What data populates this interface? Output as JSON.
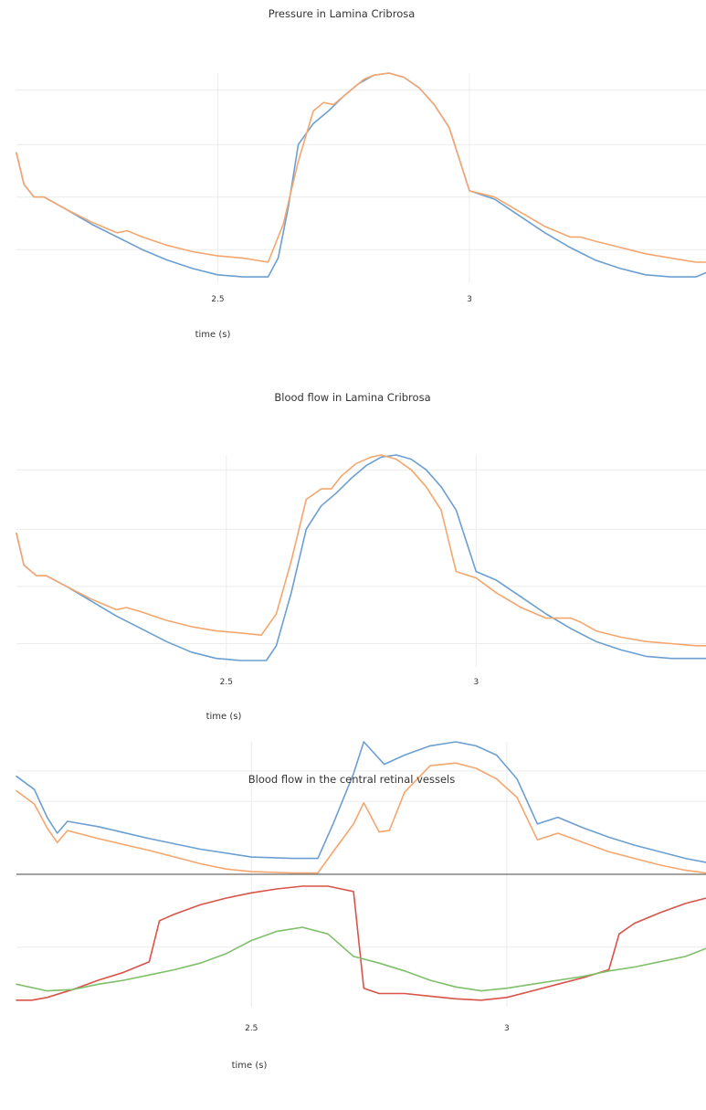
{
  "colors": {
    "blue": "#6b9fd1",
    "orange": "#f5a66e",
    "red": "#d9534a",
    "green": "#7fbf6a",
    "grid": "#ececec",
    "zero_line": "#444444",
    "text": "#333333"
  },
  "chart_data": [
    {
      "type": "line",
      "title": "Pressure in Lamina Cribrosa",
      "xlabel": "time (s)",
      "ylabel": "",
      "x_tick_labels": [
        "2.5",
        "3"
      ],
      "x_ticks": [
        2.5,
        3.0
      ],
      "xlim": [
        2.1,
        3.47
      ],
      "ylim": [
        0,
        1
      ],
      "y_grid": [
        0.16,
        0.41,
        0.66,
        0.92
      ],
      "grid": true,
      "legend": "none",
      "series": [
        {
          "color": "blue",
          "x": [
            2.1,
            2.115,
            2.135,
            2.155,
            2.2,
            2.25,
            2.3,
            2.35,
            2.4,
            2.45,
            2.5,
            2.55,
            2.6,
            2.62,
            2.64,
            2.66,
            2.69,
            2.72,
            2.75,
            2.78,
            2.81,
            2.84,
            2.87,
            2.9,
            2.93,
            2.96,
            3.0,
            3.05,
            3.1,
            3.15,
            3.2,
            3.25,
            3.3,
            3.35,
            3.4,
            3.45,
            3.47
          ],
          "y": [
            0.62,
            0.47,
            0.41,
            0.41,
            0.35,
            0.28,
            0.22,
            0.16,
            0.11,
            0.07,
            0.04,
            0.03,
            0.03,
            0.12,
            0.36,
            0.66,
            0.76,
            0.82,
            0.89,
            0.95,
            0.99,
            1.0,
            0.98,
            0.93,
            0.85,
            0.74,
            0.44,
            0.4,
            0.32,
            0.24,
            0.17,
            0.11,
            0.07,
            0.04,
            0.03,
            0.03,
            0.05
          ]
        },
        {
          "color": "orange",
          "x": [
            2.1,
            2.115,
            2.135,
            2.155,
            2.2,
            2.25,
            2.3,
            2.32,
            2.35,
            2.4,
            2.45,
            2.5,
            2.55,
            2.6,
            2.63,
            2.66,
            2.69,
            2.71,
            2.73,
            2.76,
            2.79,
            2.81,
            2.84,
            2.87,
            2.9,
            2.93,
            2.96,
            3.0,
            3.05,
            3.1,
            3.15,
            3.2,
            3.22,
            3.25,
            3.3,
            3.35,
            3.4,
            3.45,
            3.47
          ],
          "y": [
            0.62,
            0.47,
            0.41,
            0.41,
            0.35,
            0.29,
            0.24,
            0.25,
            0.22,
            0.18,
            0.15,
            0.13,
            0.12,
            0.1,
            0.28,
            0.58,
            0.82,
            0.86,
            0.85,
            0.91,
            0.97,
            0.99,
            1.0,
            0.98,
            0.93,
            0.85,
            0.74,
            0.44,
            0.41,
            0.34,
            0.27,
            0.22,
            0.22,
            0.2,
            0.17,
            0.14,
            0.12,
            0.1,
            0.1
          ]
        }
      ]
    },
    {
      "type": "line",
      "title": "Blood flow in Lamina Cribrosa",
      "xlabel": "time (s)",
      "ylabel": "",
      "x_tick_labels": [
        "2.5",
        "3"
      ],
      "x_ticks": [
        2.5,
        3.0
      ],
      "xlim": [
        2.08,
        3.46
      ],
      "ylim": [
        0,
        1
      ],
      "y_grid": [
        0.11,
        0.38,
        0.65,
        0.93
      ],
      "grid": true,
      "legend": "none",
      "series": [
        {
          "color": "blue",
          "x": [
            2.08,
            2.095,
            2.12,
            2.14,
            2.18,
            2.23,
            2.28,
            2.33,
            2.38,
            2.43,
            2.48,
            2.53,
            2.58,
            2.6,
            2.63,
            2.66,
            2.69,
            2.72,
            2.75,
            2.78,
            2.81,
            2.84,
            2.87,
            2.9,
            2.93,
            2.96,
            3.0,
            3.04,
            3.09,
            3.14,
            3.19,
            3.24,
            3.29,
            3.34,
            3.39,
            3.44,
            3.46
          ],
          "y": [
            0.63,
            0.48,
            0.43,
            0.43,
            0.38,
            0.31,
            0.24,
            0.18,
            0.12,
            0.07,
            0.04,
            0.03,
            0.03,
            0.1,
            0.35,
            0.65,
            0.76,
            0.82,
            0.89,
            0.95,
            0.99,
            1.0,
            0.98,
            0.93,
            0.85,
            0.74,
            0.45,
            0.41,
            0.33,
            0.25,
            0.18,
            0.12,
            0.08,
            0.05,
            0.04,
            0.04,
            0.04
          ]
        },
        {
          "color": "orange",
          "x": [
            2.08,
            2.095,
            2.12,
            2.14,
            2.18,
            2.23,
            2.28,
            2.3,
            2.33,
            2.38,
            2.43,
            2.48,
            2.53,
            2.57,
            2.6,
            2.63,
            2.66,
            2.69,
            2.71,
            2.73,
            2.76,
            2.79,
            2.81,
            2.84,
            2.87,
            2.9,
            2.93,
            2.96,
            3.0,
            3.04,
            3.09,
            3.14,
            3.19,
            3.21,
            3.24,
            3.29,
            3.34,
            3.39,
            3.44,
            3.46
          ],
          "y": [
            0.63,
            0.48,
            0.43,
            0.43,
            0.38,
            0.32,
            0.27,
            0.28,
            0.26,
            0.22,
            0.19,
            0.17,
            0.16,
            0.15,
            0.25,
            0.5,
            0.79,
            0.84,
            0.84,
            0.9,
            0.96,
            0.99,
            1.0,
            0.98,
            0.93,
            0.85,
            0.74,
            0.45,
            0.42,
            0.35,
            0.28,
            0.23,
            0.23,
            0.21,
            0.17,
            0.14,
            0.12,
            0.11,
            0.1,
            0.1
          ]
        }
      ]
    },
    {
      "type": "line",
      "title": "Blood flow in the central retinal vessels",
      "xlabel": "time (s)",
      "ylabel": "",
      "x_tick_labels": [
        "2.5",
        "3"
      ],
      "x_ticks": [
        2.5,
        3.0
      ],
      "xlim": [
        2.04,
        3.39
      ],
      "ylim": [
        -1,
        1
      ],
      "y_grid": [
        -0.55,
        0.55,
        0.78
      ],
      "zero_line": 0,
      "grid": true,
      "legend": "none",
      "series": [
        {
          "color": "blue",
          "x": [
            2.04,
            2.075,
            2.1,
            2.12,
            2.14,
            2.2,
            2.3,
            2.4,
            2.5,
            2.58,
            2.63,
            2.66,
            2.7,
            2.72,
            2.76,
            2.8,
            2.85,
            2.9,
            2.94,
            2.98,
            3.02,
            3.06,
            3.1,
            3.15,
            3.2,
            3.25,
            3.3,
            3.35,
            3.39
          ],
          "y": [
            0.74,
            0.64,
            0.43,
            0.31,
            0.4,
            0.36,
            0.27,
            0.19,
            0.13,
            0.12,
            0.12,
            0.38,
            0.76,
            1.0,
            0.83,
            0.9,
            0.97,
            1.0,
            0.97,
            0.9,
            0.72,
            0.38,
            0.43,
            0.35,
            0.28,
            0.22,
            0.17,
            0.12,
            0.09
          ]
        },
        {
          "color": "orange",
          "x": [
            2.04,
            2.075,
            2.1,
            2.12,
            2.14,
            2.2,
            2.3,
            2.4,
            2.45,
            2.5,
            2.58,
            2.63,
            2.66,
            2.7,
            2.72,
            2.75,
            2.77,
            2.8,
            2.85,
            2.9,
            2.94,
            2.98,
            3.02,
            3.06,
            3.1,
            3.15,
            3.2,
            3.25,
            3.3,
            3.35,
            3.39
          ],
          "y": [
            0.63,
            0.53,
            0.35,
            0.24,
            0.33,
            0.27,
            0.18,
            0.08,
            0.04,
            0.02,
            0.01,
            0.01,
            0.17,
            0.38,
            0.54,
            0.32,
            0.33,
            0.62,
            0.82,
            0.84,
            0.8,
            0.72,
            0.58,
            0.26,
            0.31,
            0.24,
            0.17,
            0.12,
            0.07,
            0.03,
            0.01
          ]
        },
        {
          "color": "red",
          "x": [
            2.04,
            2.07,
            2.1,
            2.15,
            2.2,
            2.25,
            2.3,
            2.32,
            2.35,
            2.4,
            2.45,
            2.5,
            2.55,
            2.6,
            2.65,
            2.7,
            2.72,
            2.75,
            2.8,
            2.85,
            2.9,
            2.95,
            3.0,
            3.05,
            3.1,
            3.15,
            3.2,
            3.22,
            3.25,
            3.3,
            3.35,
            3.39
          ],
          "y": [
            -0.95,
            -0.95,
            -0.93,
            -0.87,
            -0.8,
            -0.74,
            -0.66,
            -0.35,
            -0.3,
            -0.23,
            -0.18,
            -0.14,
            -0.11,
            -0.09,
            -0.09,
            -0.13,
            -0.86,
            -0.9,
            -0.9,
            -0.92,
            -0.94,
            -0.95,
            -0.93,
            -0.88,
            -0.83,
            -0.78,
            -0.72,
            -0.45,
            -0.37,
            -0.29,
            -0.22,
            -0.18
          ]
        },
        {
          "color": "green",
          "x": [
            2.04,
            2.1,
            2.15,
            2.2,
            2.25,
            2.3,
            2.35,
            2.4,
            2.45,
            2.5,
            2.55,
            2.6,
            2.65,
            2.7,
            2.75,
            2.8,
            2.85,
            2.9,
            2.95,
            3.0,
            3.05,
            3.1,
            3.15,
            3.2,
            3.25,
            3.3,
            3.35,
            3.39
          ],
          "y": [
            -0.83,
            -0.88,
            -0.87,
            -0.83,
            -0.8,
            -0.76,
            -0.72,
            -0.67,
            -0.6,
            -0.5,
            -0.43,
            -0.4,
            -0.45,
            -0.62,
            -0.67,
            -0.73,
            -0.8,
            -0.85,
            -0.88,
            -0.86,
            -0.83,
            -0.8,
            -0.77,
            -0.73,
            -0.7,
            -0.66,
            -0.62,
            -0.56
          ]
        }
      ]
    }
  ]
}
